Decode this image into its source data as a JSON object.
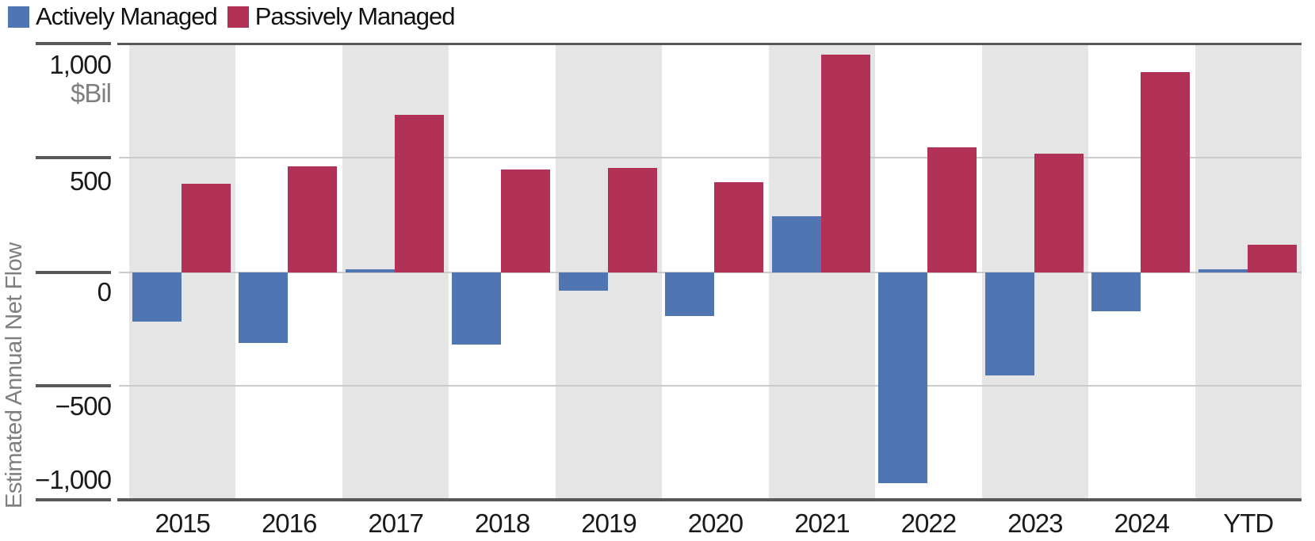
{
  "legend": [
    {
      "label": "Actively Managed",
      "color": "#4f76b2"
    },
    {
      "label": "Passively Managed",
      "color": "#b23157"
    }
  ],
  "y_axis": {
    "title": "Estimated Annual Net Flow",
    "unit": "$Bil",
    "ticks": [
      {
        "label": "1,000",
        "value": 1000
      },
      {
        "label": "500",
        "value": 500
      },
      {
        "label": "0",
        "value": 0
      },
      {
        "label": "−500",
        "value": -500
      },
      {
        "label": "−1,000",
        "value": -1000
      }
    ]
  },
  "chart_data": {
    "type": "bar",
    "title": "",
    "xlabel": "",
    "ylabel": "Estimated Annual Net Flow ($Bil)",
    "ylim": [
      -1000,
      1000
    ],
    "gridlines": [
      500,
      0,
      -500
    ],
    "band_shading": "alternating-gray-white-per-category",
    "legend_position": "top-left",
    "categories": [
      "2015",
      "2016",
      "2017",
      "2018",
      "2019",
      "2020",
      "2021",
      "2022",
      "2023",
      "2024",
      "YTD"
    ],
    "series": [
      {
        "name": "Actively Managed",
        "color": "#4f76b2",
        "values": [
          -215,
          -310,
          5,
          -315,
          -80,
          -190,
          245,
          -925,
          -450,
          -170,
          5
        ]
      },
      {
        "name": "Passively Managed",
        "color": "#b23157",
        "values": [
          390,
          465,
          690,
          450,
          460,
          395,
          955,
          550,
          520,
          880,
          120
        ]
      }
    ]
  },
  "colors": {
    "active_blue": "#4f76b2",
    "passive_red": "#b23157",
    "band_gray": "#e5e5e5",
    "grid_light": "#cbcbcb",
    "axis_dark": "#58585a",
    "text_dark": "#1a1a1a",
    "text_gray": "#7f7f7f",
    "background": "#ffffff"
  }
}
